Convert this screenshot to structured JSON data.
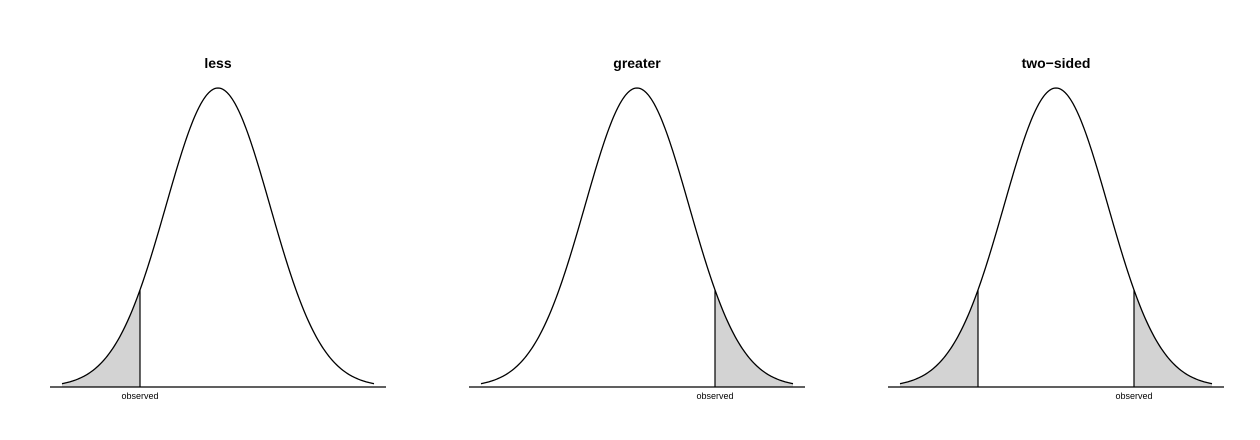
{
  "chart_data": [
    {
      "type": "area",
      "title": "less",
      "distribution": "normal",
      "mean": 0,
      "sd": 1,
      "xlim": [
        -3,
        3
      ],
      "observed_label": "observed",
      "observed": [
        -1.5
      ],
      "shaded_tails": [
        "left"
      ]
    },
    {
      "type": "area",
      "title": "greater",
      "distribution": "normal",
      "mean": 0,
      "sd": 1,
      "xlim": [
        -3,
        3
      ],
      "observed_label": "observed",
      "observed": [
        1.5
      ],
      "shaded_tails": [
        "right"
      ]
    },
    {
      "type": "area",
      "title": "two−sided",
      "distribution": "normal",
      "mean": 0,
      "sd": 1,
      "xlim": [
        -3,
        3
      ],
      "observed_label": "observed",
      "observed": [
        -1.5,
        1.5
      ],
      "shaded_tails": [
        "left",
        "right"
      ]
    }
  ]
}
